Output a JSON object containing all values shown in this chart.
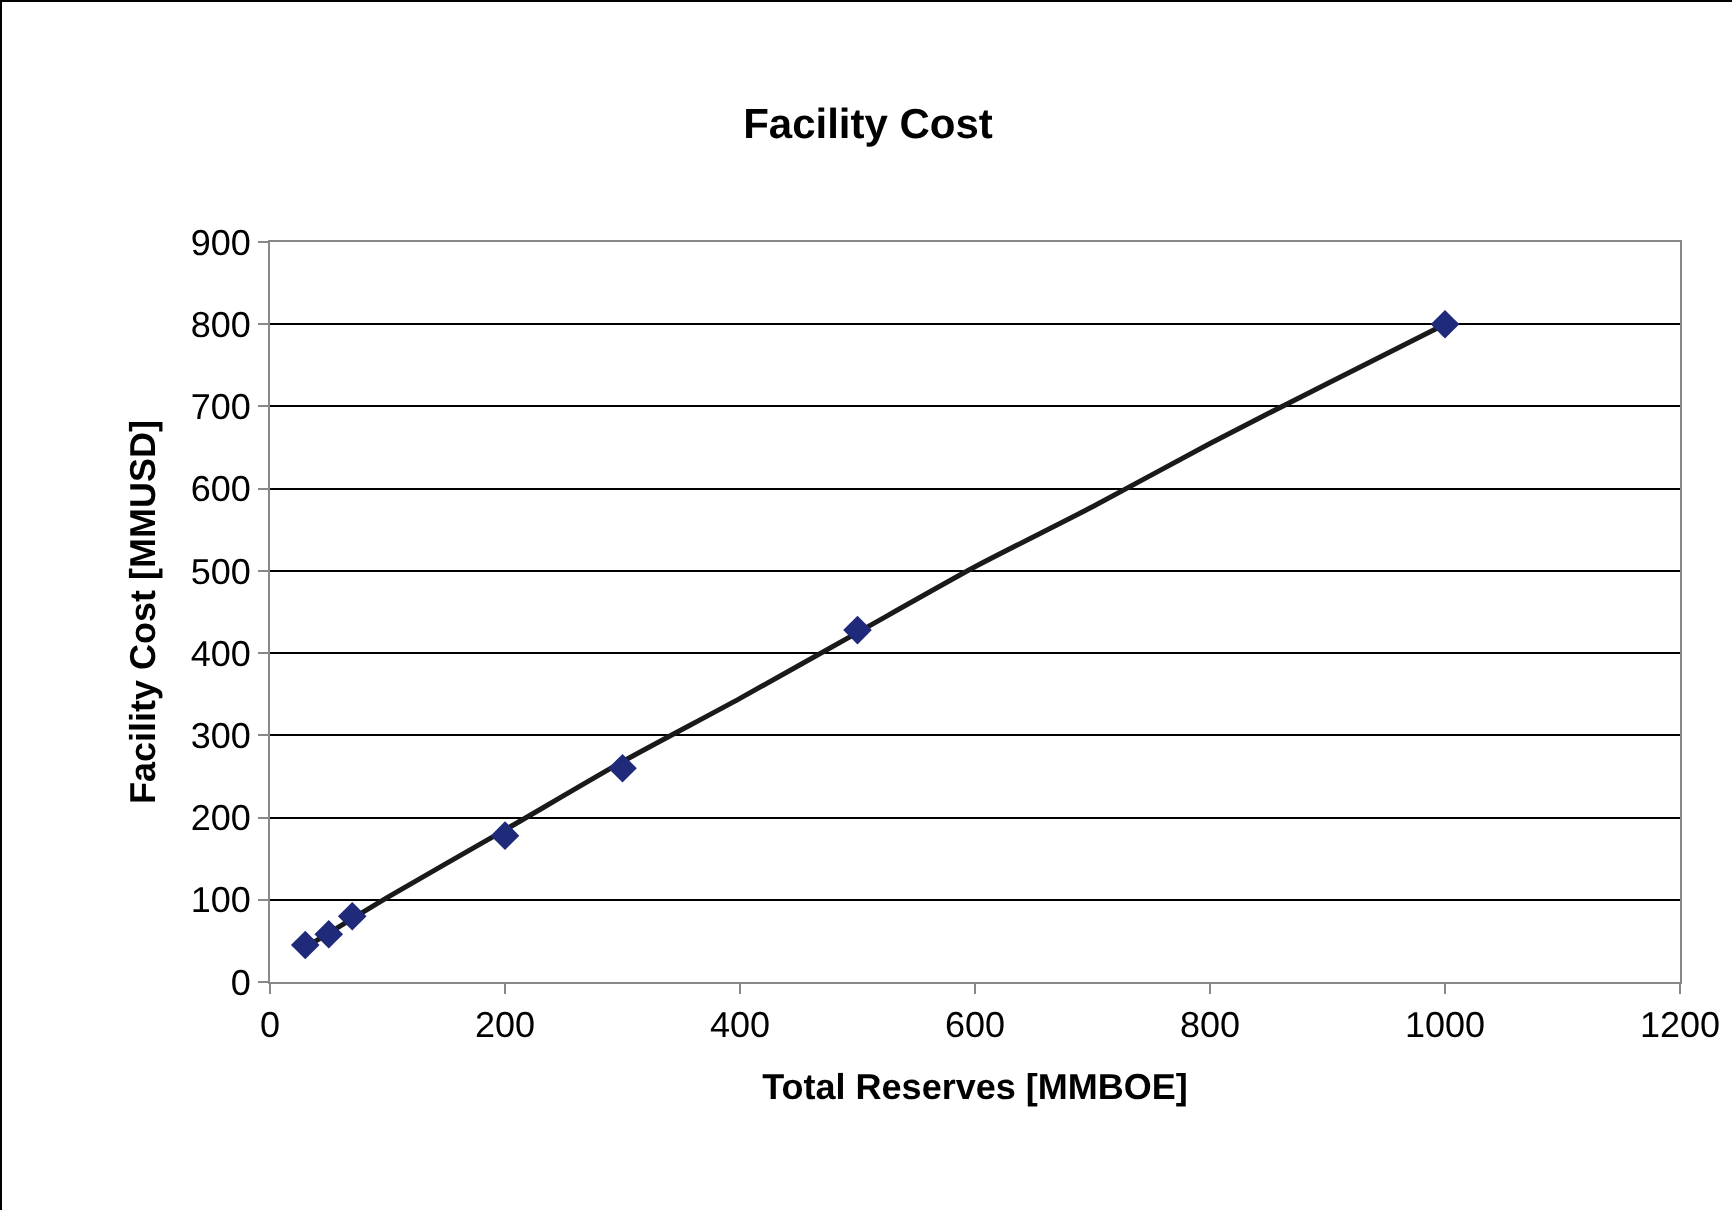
{
  "chart_data": {
    "type": "scatter",
    "title": "Facility Cost",
    "xlabel": "Total Reserves [MMBOE]",
    "ylabel": "Facility Cost [MMUSD]",
    "xlim": [
      0,
      1200
    ],
    "xticks": [
      0,
      200,
      400,
      600,
      800,
      1000,
      1200
    ],
    "ylim": [
      0,
      900
    ],
    "yticks": [
      0,
      100,
      200,
      300,
      400,
      500,
      600,
      700,
      800,
      900
    ],
    "grid": "y",
    "series": [
      {
        "color": "#1f2a7a",
        "marker": "diamond",
        "x": [
          30,
          50,
          70,
          200,
          300,
          500,
          1000
        ],
        "values": [
          45,
          58,
          80,
          178,
          260,
          428,
          800
        ]
      },
      {
        "type": "line",
        "color": "#1a1a1a",
        "marker": "none",
        "line_style": "solid",
        "x": [
          30,
          100,
          200,
          300,
          400,
          500,
          600,
          700,
          800,
          900,
          1000
        ],
        "values": [
          42,
          103,
          185,
          268,
          345,
          425,
          505,
          578,
          655,
          728,
          800
        ]
      }
    ]
  }
}
